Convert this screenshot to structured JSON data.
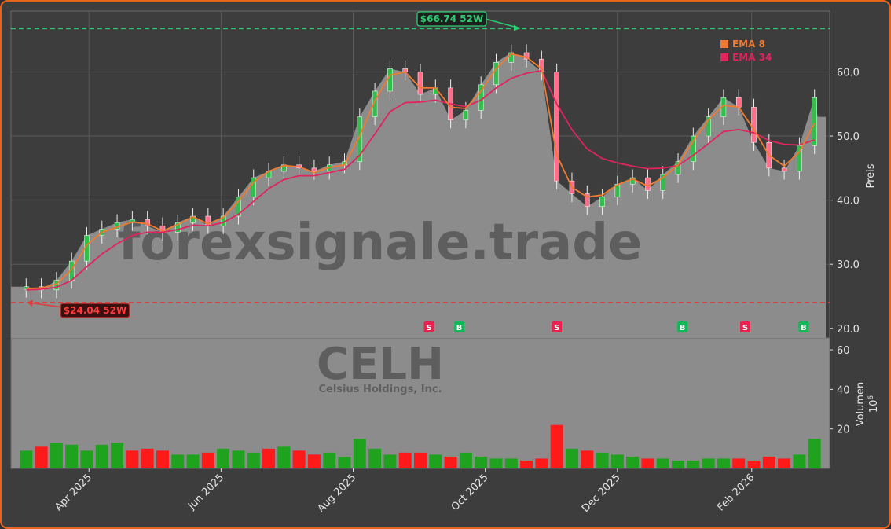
{
  "chart_data": {
    "type": "candlestick",
    "ticker": "CELH",
    "company": "Celsius Holdings, Inc.",
    "watermark": "forexsignale.trade",
    "x_dates": [
      "2025-03-03",
      "2025-03-10",
      "2025-03-17",
      "2025-03-24",
      "2025-03-31",
      "2025-04-07",
      "2025-04-14",
      "2025-04-21",
      "2025-04-28",
      "2025-05-05",
      "2025-05-12",
      "2025-05-19",
      "2025-05-26",
      "2025-06-02",
      "2025-06-09",
      "2025-06-16",
      "2025-06-23",
      "2025-06-30",
      "2025-07-07",
      "2025-07-14",
      "2025-07-21",
      "2025-07-28",
      "2025-08-04",
      "2025-08-11",
      "2025-08-18",
      "2025-08-25",
      "2025-09-01",
      "2025-09-08",
      "2025-09-15",
      "2025-09-22",
      "2025-09-29",
      "2025-10-06",
      "2025-10-13",
      "2025-10-20",
      "2025-10-27",
      "2025-11-03",
      "2025-11-10",
      "2025-11-17",
      "2025-11-24",
      "2025-12-01",
      "2025-12-08",
      "2025-12-15",
      "2025-12-22",
      "2025-12-29",
      "2026-01-05",
      "2026-01-12",
      "2026-01-19",
      "2026-01-26",
      "2026-02-02",
      "2026-02-09",
      "2026-02-16",
      "2026-02-23",
      "2026-03-02"
    ],
    "price_close": [
      26.5,
      26.0,
      27.5,
      30.5,
      34.5,
      35.5,
      36.5,
      37.0,
      36.0,
      35.0,
      36.5,
      37.5,
      36.0,
      37.5,
      40.5,
      43.5,
      44.5,
      45.5,
      45.0,
      44.5,
      45.5,
      46.0,
      53.0,
      57.0,
      60.5,
      60.0,
      56.5,
      57.5,
      52.5,
      54.0,
      58.0,
      61.5,
      63.0,
      62.0,
      60.0,
      43.0,
      41.0,
      39.0,
      40.5,
      42.5,
      43.5,
      41.5,
      44.0,
      46.0,
      50.0,
      53.0,
      56.0,
      54.5,
      49.0,
      45.0,
      44.5,
      48.5,
      56.0
    ],
    "ema8": [
      26.2,
      26.3,
      26.9,
      29.2,
      33.0,
      35.0,
      35.8,
      36.6,
      36.3,
      35.2,
      36.2,
      37.4,
      36.3,
      37.3,
      39.8,
      42.8,
      44.5,
      45.4,
      45.2,
      44.3,
      45.1,
      45.5,
      50.0,
      55.5,
      59.5,
      60.0,
      57.5,
      57.5,
      54.5,
      54.3,
      57.0,
      60.5,
      62.8,
      62.3,
      60.5,
      47.0,
      42.0,
      40.5,
      40.8,
      42.4,
      43.3,
      42.2,
      43.5,
      45.5,
      49.2,
      52.5,
      54.8,
      54.5,
      51.0,
      47.0,
      45.3,
      47.5,
      52.0
    ],
    "ema34": [
      26.0,
      26.1,
      26.4,
      27.5,
      29.6,
      31.6,
      33.2,
      34.5,
      35.0,
      35.0,
      35.4,
      36.1,
      36.0,
      36.5,
      37.8,
      39.8,
      41.8,
      43.2,
      43.8,
      43.8,
      44.3,
      44.8,
      47.0,
      50.3,
      53.8,
      55.2,
      55.3,
      55.6,
      55.0,
      54.6,
      55.6,
      57.5,
      59.0,
      59.8,
      60.2,
      55.0,
      51.0,
      48.0,
      46.5,
      45.8,
      45.3,
      44.9,
      45.0,
      45.4,
      47.0,
      48.8,
      50.7,
      51.0,
      50.5,
      49.3,
      48.7,
      48.6,
      49.4
    ],
    "volume_millions": [
      9,
      11,
      13,
      12,
      9,
      12,
      13,
      9,
      10,
      9,
      7,
      7,
      8,
      10,
      9,
      8,
      10,
      11,
      9,
      7,
      8,
      6,
      15,
      10,
      7,
      8,
      8,
      7,
      6,
      8,
      6,
      5,
      5,
      4,
      5,
      22,
      10,
      9,
      8,
      7,
      6,
      5,
      5,
      4,
      4,
      5,
      5,
      5,
      4,
      6,
      5,
      7,
      15
    ],
    "volume_up": [
      true,
      false,
      true,
      true,
      true,
      true,
      true,
      false,
      false,
      false,
      true,
      true,
      false,
      true,
      true,
      true,
      false,
      true,
      false,
      false,
      true,
      true,
      true,
      true,
      true,
      false,
      false,
      true,
      false,
      true,
      true,
      true,
      true,
      false,
      false,
      false,
      true,
      false,
      true,
      true,
      true,
      false,
      true,
      true,
      true,
      true,
      true,
      false,
      false,
      false,
      false,
      true,
      true
    ],
    "high_52w": {
      "value": 66.74,
      "label": "$66.74 52W"
    },
    "low_52w": {
      "value": 24.04,
      "label": "$24.04 52W"
    },
    "signals": [
      {
        "date": "2025-09-05",
        "type": "S"
      },
      {
        "date": "2025-09-19",
        "type": "B"
      },
      {
        "date": "2025-11-03",
        "type": "S"
      },
      {
        "date": "2025-12-31",
        "type": "B"
      },
      {
        "date": "2026-01-29",
        "type": "S"
      },
      {
        "date": "2026-02-25",
        "type": "B"
      }
    ],
    "price_ylim": [
      20,
      68
    ],
    "volume_ylim": [
      0,
      65
    ],
    "ylabel_price": "Preis",
    "ylabel_volume": "Volumen",
    "volume_unit": "10",
    "volume_unit_exp": "6",
    "price_ticks": [
      "20.0",
      "30.0",
      "40.0",
      "50.0",
      "60.0"
    ],
    "volume_ticks": [
      "20",
      "40",
      "60"
    ],
    "x_ticks": [
      {
        "date": "2025-04-01",
        "label": "Apr 2025"
      },
      {
        "date": "2025-06-01",
        "label": "Jun 2025"
      },
      {
        "date": "2025-08-01",
        "label": "Aug 2025"
      },
      {
        "date": "2025-10-01",
        "label": "Oct 2025"
      },
      {
        "date": "2025-12-01",
        "label": "Dec 2025"
      },
      {
        "date": "2026-02-01",
        "label": "Feb 2026"
      }
    ],
    "legend": [
      {
        "label": "EMA 8",
        "color": "#f07a2f"
      },
      {
        "label": "EMA 34",
        "color": "#e0245e"
      }
    ],
    "grid": true,
    "colors": {
      "up": "#1fa31f",
      "down": "#ff1a1a",
      "area": "#8c8c8c",
      "high": "#2ecc71",
      "low": "#e03a3a",
      "buy": "#12b757",
      "sell": "#e8224f"
    }
  }
}
